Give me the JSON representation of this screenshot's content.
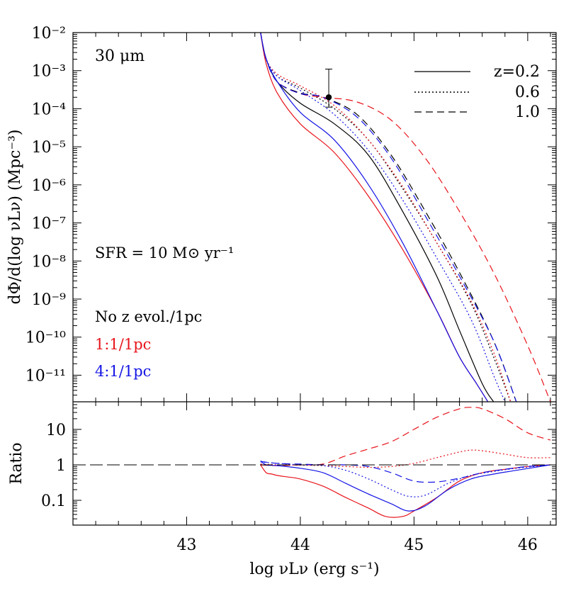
{
  "chart_data": [
    {
      "type": "line",
      "panel": "top",
      "ylabel": "dΦ/d(log νLν) (Mpc⁻³)",
      "y_scale": "log",
      "ylim": [
        2e-12,
        0.01
      ],
      "xlim": [
        42.0,
        46.25
      ],
      "y_ticks": [
        "10⁻²",
        "10⁻³",
        "10⁻⁴",
        "10⁻⁵",
        "10⁻⁶",
        "10⁻⁷",
        "10⁻⁸",
        "10⁻⁹",
        "10⁻¹⁰",
        "10⁻¹¹"
      ],
      "annotations": {
        "band": "30 μm",
        "sfr": "SFR = 10 M⊙ yr⁻¹",
        "model_black": "No z evol./1pc",
        "model_red": "1:1/1pc",
        "model_blue": "4:1/1pc"
      },
      "legend": [
        {
          "label": "z=0.2",
          "dash": "solid"
        },
        {
          "label": "0.6",
          "dash": "dotted"
        },
        {
          "label": "1.0",
          "dash": "dashed"
        }
      ],
      "colors": {
        "black": "#000000",
        "red": "#e8141b",
        "blue": "#1414e6"
      },
      "data_point": {
        "x": 44.25,
        "y": 0.0002,
        "y_err_low": 0.00011,
        "y_err_high": 0.0011
      },
      "series": [
        {
          "model": "black",
          "z": "0.2",
          "x": [
            43.65,
            43.7,
            43.8,
            44.0,
            44.3,
            44.6,
            44.9,
            45.2,
            45.4,
            45.6,
            45.7
          ],
          "y": [
            0.01,
            0.002,
            0.0005,
            0.00014,
            4e-05,
            6e-06,
            2e-07,
            4e-09,
            1.5e-10,
            6e-12,
            2e-12
          ]
        },
        {
          "model": "black",
          "z": "0.6",
          "x": [
            43.65,
            43.7,
            43.8,
            44.0,
            44.3,
            44.6,
            44.9,
            45.2,
            45.5,
            45.7,
            45.85
          ],
          "y": [
            0.01,
            0.002,
            0.0007,
            0.00035,
            0.0001,
            1.5e-05,
            8e-07,
            3e-08,
            8e-10,
            3e-11,
            2e-12
          ]
        },
        {
          "model": "black",
          "z": "1.0",
          "x": [
            43.65,
            43.7,
            43.8,
            44.0,
            44.2,
            44.5,
            44.8,
            45.1,
            45.4,
            45.7,
            45.9
          ],
          "y": [
            0.01,
            0.002,
            0.0005,
            0.00026,
            0.0002,
            7e-05,
            6e-06,
            2e-07,
            5e-09,
            8e-11,
            2e-12
          ]
        },
        {
          "model": "red",
          "z": "0.2",
          "x": [
            43.65,
            43.7,
            43.8,
            44.0,
            44.3,
            44.6,
            44.9,
            45.2,
            45.4,
            45.55,
            45.65
          ],
          "y": [
            0.01,
            0.0015,
            0.00025,
            4e-05,
            7e-06,
            5e-07,
            2e-08,
            5e-10,
            3e-11,
            6e-12,
            2e-12
          ]
        },
        {
          "model": "red",
          "z": "0.6",
          "x": [
            43.65,
            43.7,
            43.8,
            44.0,
            44.3,
            44.6,
            44.9,
            45.2,
            45.5,
            45.7,
            45.85
          ],
          "y": [
            0.01,
            0.002,
            0.0008,
            0.0004,
            0.00012,
            1.5e-05,
            9e-07,
            3e-08,
            9e-10,
            4e-11,
            2e-12
          ]
        },
        {
          "model": "red",
          "z": "1.0",
          "x": [
            43.65,
            43.7,
            43.8,
            44.0,
            44.2,
            44.5,
            44.8,
            45.1,
            45.4,
            45.7,
            46.0,
            46.2
          ],
          "y": [
            0.01,
            0.002,
            0.0005,
            0.00025,
            0.0002,
            0.00015,
            5e-05,
            5e-06,
            2e-07,
            5e-09,
            6e-11,
            2e-12
          ]
        },
        {
          "model": "blue",
          "z": "0.2",
          "x": [
            43.65,
            43.7,
            43.8,
            44.0,
            44.3,
            44.6,
            44.9,
            45.2,
            45.4,
            45.55,
            45.65
          ],
          "y": [
            0.01,
            0.002,
            0.0005,
            8e-05,
            1.5e-05,
            1e-06,
            3e-08,
            5e-10,
            3e-11,
            6e-12,
            2e-12
          ]
        },
        {
          "model": "blue",
          "z": "0.6",
          "x": [
            43.65,
            43.7,
            43.8,
            44.0,
            44.3,
            44.6,
            44.9,
            45.2,
            45.5,
            45.7,
            45.8
          ],
          "y": [
            0.01,
            0.002,
            0.0007,
            0.0003,
            7e-05,
            8e-06,
            4e-07,
            1.2e-08,
            3e-10,
            1e-11,
            2e-12
          ]
        },
        {
          "model": "blue",
          "z": "1.0",
          "x": [
            43.65,
            43.7,
            43.8,
            44.0,
            44.2,
            44.5,
            44.8,
            45.1,
            45.4,
            45.7,
            45.9
          ],
          "y": [
            0.01,
            0.002,
            0.0005,
            0.00025,
            0.0002,
            6e-05,
            5e-06,
            1.5e-07,
            4e-09,
            8e-11,
            2e-12
          ]
        }
      ]
    },
    {
      "type": "line",
      "panel": "bottom",
      "ylabel": "Ratio",
      "xlabel": "log νLν (erg s⁻¹)",
      "y_scale": "log",
      "ylim": [
        0.02,
        60
      ],
      "xlim": [
        42.0,
        46.25
      ],
      "x_ticks": [
        43,
        44,
        45,
        46
      ],
      "y_ticks": [
        "10",
        "1",
        "0.1"
      ],
      "reference_line": 1,
      "series": [
        {
          "model": "red",
          "z": "0.2",
          "x": [
            43.65,
            43.7,
            43.75,
            43.8,
            43.9,
            44.0,
            44.2,
            44.4,
            44.6,
            44.75,
            44.9,
            45.0,
            45.2,
            45.4,
            45.6,
            45.8,
            46.0,
            46.2
          ],
          "y": [
            1.0,
            0.6,
            0.55,
            0.5,
            0.45,
            0.4,
            0.25,
            0.12,
            0.06,
            0.035,
            0.035,
            0.05,
            0.12,
            0.35,
            0.6,
            0.75,
            0.9,
            1.0
          ]
        },
        {
          "model": "red",
          "z": "0.6",
          "x": [
            43.65,
            43.8,
            44.0,
            44.2,
            44.4,
            44.6,
            44.8,
            45.0,
            45.2,
            45.4,
            45.5,
            45.6,
            45.8,
            46.0,
            46.2
          ],
          "y": [
            1.05,
            1.0,
            0.98,
            0.95,
            0.9,
            0.85,
            0.9,
            1.1,
            1.6,
            2.3,
            2.6,
            2.5,
            2.0,
            1.6,
            1.6
          ]
        },
        {
          "model": "red",
          "z": "1.0",
          "x": [
            43.65,
            43.8,
            44.0,
            44.2,
            44.4,
            44.6,
            44.8,
            45.0,
            45.2,
            45.4,
            45.5,
            45.6,
            45.8,
            46.0,
            46.2
          ],
          "y": [
            1.0,
            0.95,
            1.0,
            1.05,
            1.8,
            2.8,
            4.5,
            10,
            22,
            38,
            42,
            38,
            20,
            8,
            5
          ]
        },
        {
          "model": "blue",
          "z": "0.2",
          "x": [
            43.65,
            43.7,
            43.8,
            44.0,
            44.2,
            44.4,
            44.6,
            44.8,
            44.95,
            45.1,
            45.3,
            45.5,
            45.7,
            45.9,
            46.2
          ],
          "y": [
            1.3,
            1.0,
            0.95,
            0.8,
            0.6,
            0.3,
            0.15,
            0.08,
            0.05,
            0.07,
            0.2,
            0.4,
            0.55,
            0.7,
            1.0
          ]
        },
        {
          "model": "blue",
          "z": "0.6",
          "x": [
            43.65,
            43.8,
            44.0,
            44.2,
            44.4,
            44.6,
            44.8,
            44.95,
            45.1,
            45.3,
            45.5,
            45.7,
            45.9,
            46.2
          ],
          "y": [
            1.2,
            1.1,
            1.0,
            0.95,
            0.7,
            0.4,
            0.2,
            0.13,
            0.14,
            0.3,
            0.5,
            0.65,
            0.8,
            1.0
          ]
        },
        {
          "model": "blue",
          "z": "1.0",
          "x": [
            43.65,
            43.8,
            44.0,
            44.2,
            44.4,
            44.6,
            44.8,
            45.0,
            45.2,
            45.4,
            45.6,
            45.8,
            46.0,
            46.2
          ],
          "y": [
            1.25,
            1.1,
            1.05,
            1.0,
            1.0,
            0.9,
            0.6,
            0.35,
            0.33,
            0.42,
            0.6,
            0.75,
            0.9,
            1.0
          ]
        }
      ]
    }
  ]
}
